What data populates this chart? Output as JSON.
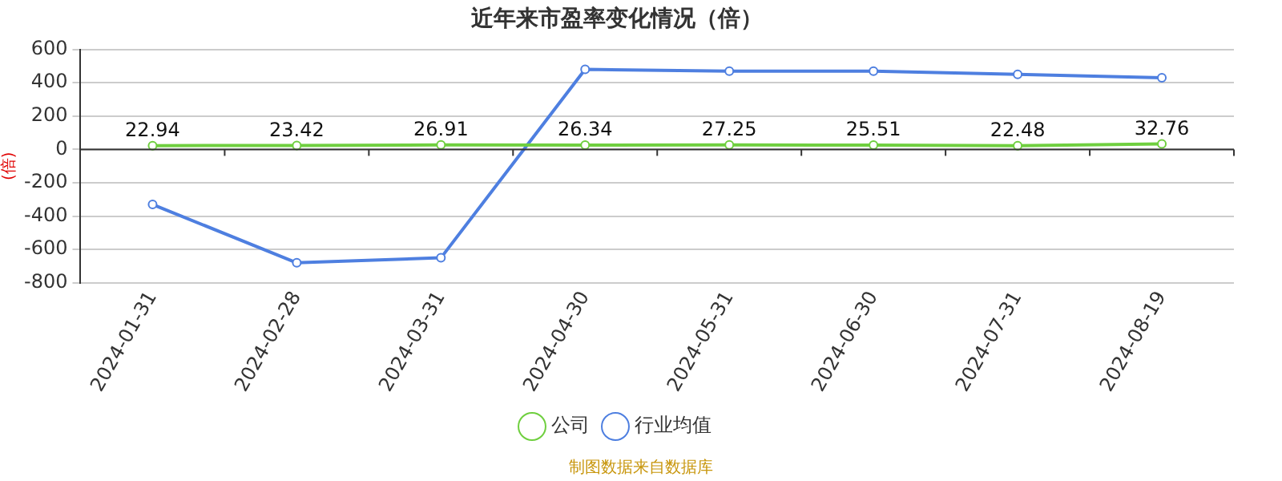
{
  "chart_data": {
    "type": "line",
    "title": "近年来市盈率变化情况（倍）",
    "ylabel": "(倍)",
    "annotations": [
      "制图数据来自数据库"
    ],
    "categories": [
      "2024-01-31",
      "2024-02-28",
      "2024-03-31",
      "2024-04-30",
      "2024-05-31",
      "2024-06-30",
      "2024-07-31",
      "2024-08-19"
    ],
    "series": [
      {
        "name": "公司",
        "color": "#6fcf3f",
        "values": [
          22.94,
          23.42,
          26.91,
          26.34,
          27.25,
          25.51,
          22.48,
          32.76
        ],
        "value_labels": [
          "22.94",
          "23.42",
          "26.91",
          "26.34",
          "27.25",
          "25.51",
          "22.48",
          "32.76"
        ]
      },
      {
        "name": "行业均值",
        "color": "#4e7fe0",
        "values": [
          -330,
          -680,
          -650,
          480,
          470,
          470,
          450,
          430
        ]
      }
    ],
    "ylim": [
      -800,
      600
    ],
    "yticks": [
      -800,
      -600,
      -400,
      -200,
      0,
      200,
      400,
      600
    ],
    "grid": "y",
    "legend": "bottom",
    "marker": "circle",
    "line_style": "solid"
  }
}
